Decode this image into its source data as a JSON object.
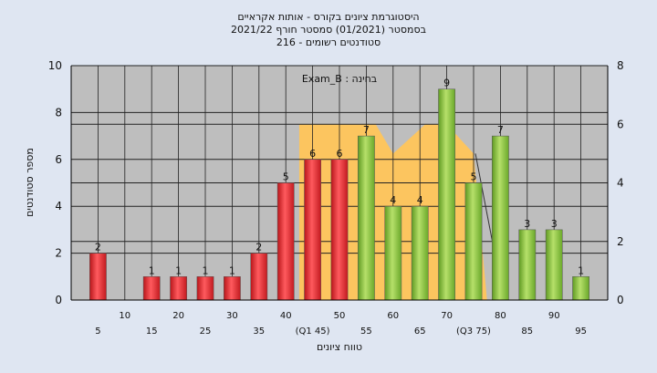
{
  "chart_data": {
    "type": "bar",
    "title_lines": [
      "היסטוגרמת ציונים בקורס - אותות אקראיים",
      "בסמסטר  (01/2021)  סמסטר חורף 2021/22",
      "סטודנטים רשומים - 216"
    ],
    "annotation": "בחינה : Exam_B",
    "ylabel": "מספר סטודנטים",
    "xlabel": "טווח ציונים",
    "y_ticks": [
      "0",
      "2",
      "4",
      "6",
      "8",
      "10"
    ],
    "y2_ticks": [
      "0",
      "2",
      "4",
      "6",
      "8"
    ],
    "ylim": [
      0,
      10
    ],
    "y2lim": [
      0,
      8
    ],
    "x_tick_labels": [
      "5",
      "10",
      "15",
      "20",
      "25",
      "30",
      "35",
      "40",
      "(Q1 45)",
      "50",
      "55",
      "60",
      "65",
      "70",
      "(Q3 75)",
      "80",
      "85",
      "90",
      "95"
    ],
    "categories": [
      "5",
      "10",
      "15",
      "20",
      "25",
      "30",
      "35",
      "40",
      "45",
      "50",
      "55",
      "60",
      "65",
      "70",
      "75",
      "80",
      "85",
      "90",
      "95"
    ],
    "values": [
      2,
      0,
      1,
      1,
      1,
      1,
      2,
      5,
      6,
      6,
      7,
      4,
      4,
      9,
      5,
      7,
      3,
      3,
      1
    ],
    "value_labels": [
      "2",
      "",
      "1",
      "1",
      "1",
      "1",
      "2",
      "5",
      "6",
      "6",
      "7",
      "4",
      "4",
      "9",
      "5",
      "7",
      "3",
      "3",
      "1"
    ],
    "bar_colors": {
      "below_median": "#e8262b",
      "above_median": "#8cc63e"
    },
    "band_color": "#ffc55a",
    "band_y2": 6,
    "band_dip_y2": 5,
    "colors": {
      "background": "#dfe6f2",
      "plot": "#bebebe",
      "grid": "#000000"
    }
  }
}
